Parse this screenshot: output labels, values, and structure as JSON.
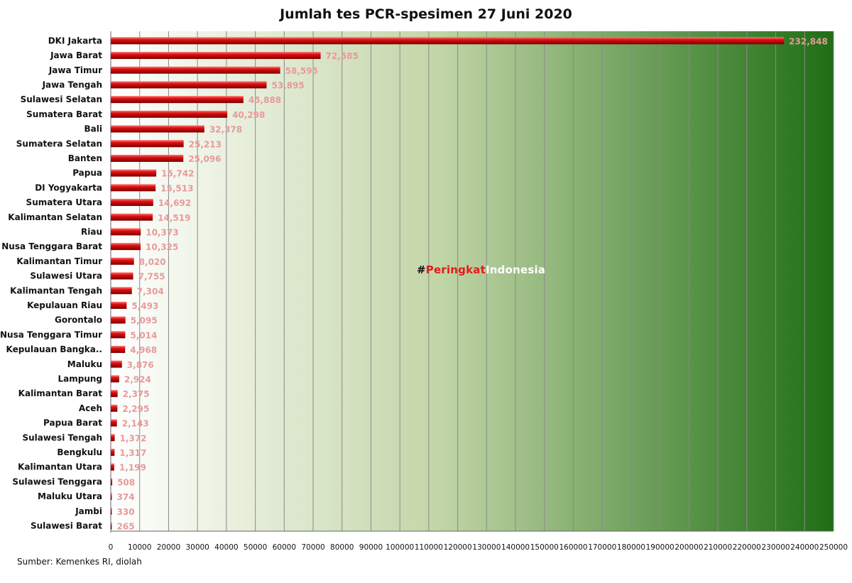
{
  "watermark": {
    "hash": "#",
    "part1": "Peringkat",
    "part2": "Indonesia"
  },
  "source": "Sumber: Kemenkes RI, diolah",
  "colors": {
    "bar": "#e01010",
    "bar_highlight": "#ff7a7a",
    "bar_shadow": "#7a0000",
    "value_label": "#e79a9a",
    "gradient_start": "#ffffff",
    "gradient_end": "#1e6e14",
    "gridline": "#8a8a8a"
  },
  "chart_data": {
    "type": "bar",
    "orientation": "horizontal",
    "title": "Jumlah tes PCR-spesimen 27 Juni 2020",
    "xlabel": "",
    "ylabel": "",
    "xlim": [
      0,
      250000
    ],
    "xticks": [
      0,
      10000,
      20000,
      30000,
      40000,
      50000,
      60000,
      70000,
      80000,
      90000,
      100000,
      110000,
      120000,
      130000,
      140000,
      150000,
      160000,
      170000,
      180000,
      190000,
      200000,
      210000,
      220000,
      230000,
      240000,
      250000
    ],
    "grid": true,
    "categories": [
      "DKI Jakarta",
      "Jawa Barat",
      "Jawa Timur",
      "Jawa Tengah",
      "Sulawesi Selatan",
      "Sumatera Barat",
      "Bali",
      "Sumatera Selatan",
      "Banten",
      "Papua",
      "DI Yogyakarta",
      "Sumatera Utara",
      "Kalimantan Selatan",
      "Riau",
      "Nusa Tenggara Barat",
      "Kalimantan Timur",
      "Sulawesi Utara",
      "Kalimantan Tengah",
      "Kepulauan Riau",
      "Gorontalo",
      "Nusa Tenggara Timur",
      "Kepulauan Bangka..",
      "Maluku",
      "Lampung",
      "Kalimantan Barat",
      "Aceh",
      "Papua Barat",
      "Sulawesi Tengah",
      "Bengkulu",
      "Kalimantan Utara",
      "Sulawesi Tenggara",
      "Maluku Utara",
      "Jambi",
      "Sulawesi Barat"
    ],
    "values": [
      232848,
      72585,
      58595,
      53895,
      45888,
      40298,
      32378,
      25213,
      25096,
      15742,
      15513,
      14692,
      14519,
      10373,
      10325,
      8020,
      7755,
      7304,
      5493,
      5095,
      5014,
      4968,
      3876,
      2924,
      2375,
      2295,
      2143,
      1372,
      1317,
      1199,
      508,
      374,
      330,
      265
    ],
    "value_labels": [
      "232,848",
      "72,585",
      "58,595",
      "53,895",
      "45,888",
      "40,298",
      "32,378",
      "25,213",
      "25,096",
      "15,742",
      "15,513",
      "14,692",
      "14,519",
      "10,373",
      "10,325",
      "8,020",
      "7,755",
      "7,304",
      "5,493",
      "5,095",
      "5,014",
      "4,968",
      "3,876",
      "2,924",
      "2,375",
      "2,295",
      "2,143",
      "1,372",
      "1,317",
      "1,199",
      "508",
      "374",
      "330",
      "265"
    ]
  }
}
